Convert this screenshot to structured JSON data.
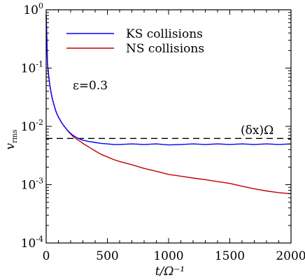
{
  "chart_data": {
    "type": "line",
    "title": "",
    "xlabel": "t/Ω⁻¹",
    "ylabel": "vrms",
    "xlim": [
      0,
      2000
    ],
    "ylim": [
      0.0001,
      1
    ],
    "yscale": "log",
    "grid": false,
    "legend_position": "top-center",
    "x_ticks": [
      0,
      500,
      1000,
      1500,
      2000
    ],
    "x_tick_labels": [
      "0",
      "500",
      "1000",
      "1500",
      "2000"
    ],
    "y_ticks": [
      0.0001,
      0.001,
      0.01,
      0.1,
      1
    ],
    "y_tick_labels": [
      {
        "base": "10",
        "exp": "-4"
      },
      {
        "base": "10",
        "exp": "-3"
      },
      {
        "base": "10",
        "exp": "-2"
      },
      {
        "base": "10",
        "exp": "-1"
      },
      {
        "base": "10",
        "exp": "0"
      }
    ],
    "series": [
      {
        "name": "KS collisions",
        "color": "#0000ff",
        "x": [
          0,
          5,
          10,
          20,
          30,
          40,
          50,
          60,
          70,
          80,
          90,
          100,
          120,
          140,
          160,
          180,
          200,
          220,
          250,
          280,
          300,
          350,
          400,
          450,
          500,
          550,
          600,
          700,
          800,
          900,
          1000,
          1100,
          1200,
          1300,
          1400,
          1500,
          1600,
          1700,
          1800,
          1900,
          2000
        ],
        "y": [
          0.8,
          0.35,
          0.12,
          0.075,
          0.05,
          0.038,
          0.03,
          0.025,
          0.021,
          0.018,
          0.016,
          0.0145,
          0.0122,
          0.0105,
          0.0093,
          0.0083,
          0.0076,
          0.007,
          0.0064,
          0.006,
          0.0058,
          0.0055,
          0.0053,
          0.0051,
          0.005,
          0.0049,
          0.0049,
          0.005,
          0.0049,
          0.005,
          0.0048,
          0.0049,
          0.005,
          0.0049,
          0.005,
          0.0049,
          0.005,
          0.0049,
          0.005,
          0.0049,
          0.005
        ]
      },
      {
        "name": "NS collisions",
        "color": "#c00000",
        "x": [
          0,
          5,
          10,
          20,
          30,
          40,
          50,
          60,
          70,
          80,
          90,
          100,
          120,
          140,
          160,
          180,
          200,
          220,
          250,
          280,
          300,
          350,
          400,
          450,
          500,
          550,
          600,
          700,
          800,
          900,
          1000,
          1100,
          1200,
          1300,
          1400,
          1500,
          1600,
          1700,
          1800,
          1900,
          2000
        ],
        "y": [
          0.8,
          0.35,
          0.12,
          0.075,
          0.05,
          0.038,
          0.03,
          0.025,
          0.021,
          0.018,
          0.016,
          0.0145,
          0.0122,
          0.0105,
          0.0093,
          0.0082,
          0.0074,
          0.0067,
          0.006,
          0.0055,
          0.0051,
          0.0044,
          0.0038,
          0.0033,
          0.003,
          0.0027,
          0.0025,
          0.0022,
          0.0019,
          0.0017,
          0.0015,
          0.0014,
          0.0013,
          0.00122,
          0.00113,
          0.00105,
          0.00094,
          0.00085,
          0.00078,
          0.00073,
          0.0007
        ]
      }
    ],
    "reference_line": {
      "label": "(δx)Ω",
      "y": 0.0062,
      "style": "dashed",
      "color": "#000000"
    },
    "annotations": [
      {
        "text": "ε=0.3"
      }
    ]
  }
}
